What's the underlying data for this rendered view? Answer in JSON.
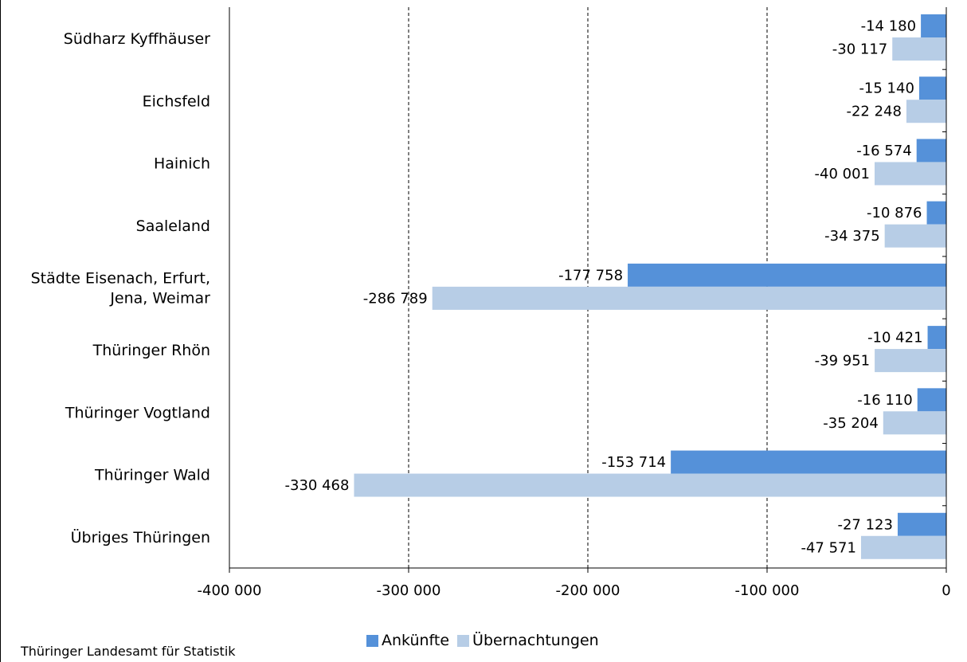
{
  "chart_data": {
    "type": "bar",
    "orientation": "horizontal",
    "categories": [
      [
        "Südharz Kyffhäuser"
      ],
      [
        "Eichsfeld"
      ],
      [
        "Hainich"
      ],
      [
        "Saaleland"
      ],
      [
        "Städte Eisenach, Erfurt,",
        "Jena, Weimar"
      ],
      [
        "Thüringer Rhön"
      ],
      [
        "Thüringer Vogtland"
      ],
      [
        "Thüringer Wald"
      ],
      [
        "Übriges Thüringen"
      ]
    ],
    "series": [
      {
        "name": "Ankünfte",
        "color": "#5591d9",
        "values": [
          -14180,
          -15140,
          -16574,
          -10876,
          -177758,
          -10421,
          -16110,
          -153714,
          -27123
        ],
        "labels": [
          "-14 180",
          "-15 140",
          "-16 574",
          "-10 876",
          "-177 758",
          "-10 421",
          "-16 110",
          "-153 714",
          "-27 123"
        ]
      },
      {
        "name": "Übernachtungen",
        "color": "#b7cde6",
        "values": [
          -30117,
          -22248,
          -40001,
          -34375,
          -286789,
          -39951,
          -35204,
          -330468,
          -47571
        ],
        "labels": [
          "-30 117",
          "-22 248",
          "-40 001",
          "-34 375",
          "-286 789",
          "-39 951",
          "-35 204",
          "-330 468",
          "-47 571"
        ]
      }
    ],
    "xlim": [
      -400000,
      0
    ],
    "xticks": [
      -400000,
      -300000,
      -200000,
      -100000,
      0
    ],
    "xtick_labels": [
      "-400 000",
      "-300 000",
      "-200 000",
      "-100 000",
      "0"
    ],
    "gridlines": "vertical dashed",
    "legend_position": "bottom"
  },
  "source": "Thüringer Landesamt für Statistik"
}
